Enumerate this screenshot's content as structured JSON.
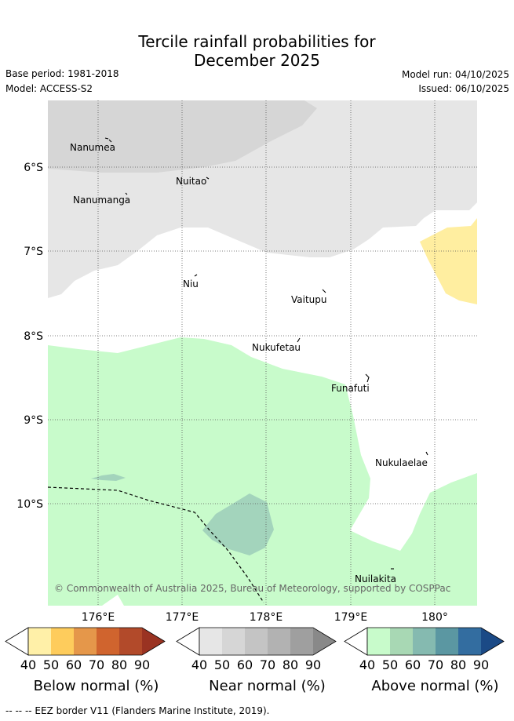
{
  "title_line1": "Tercile rainfall probabilities for",
  "title_line2": "December 2025",
  "base_period": "Base period: 1981-2018",
  "model": "Model: ACCESS-S2",
  "model_run": "Model run: 04/10/2025",
  "issued": "Issued: 06/10/2025",
  "lat_labels": [
    "6°S",
    "7°S",
    "8°S",
    "9°S",
    "10°S"
  ],
  "lon_labels": [
    "176°E",
    "177°E",
    "178°E",
    "179°E",
    "180°"
  ],
  "islands": [
    "Nanumea",
    "Nuitao",
    "Nanumanga",
    "Niu",
    "Vaitupu",
    "Nukufetau",
    "Funafuti",
    "Nukulaelae",
    "Nuilakita"
  ],
  "credit": "© Commonwealth of Australia 2025, Bureau of Meteorology, supported by COSPPac",
  "colorbars": [
    {
      "title": "Below normal (%)",
      "ticks": [
        "40",
        "50",
        "60",
        "70",
        "80",
        "90"
      ],
      "colors": [
        "#fff0a8",
        "#fecc5c",
        "#e5974a",
        "#d0642e",
        "#b24a2a",
        "#9a3322"
      ]
    },
    {
      "title": "Near normal (%)",
      "ticks": [
        "40",
        "50",
        "60",
        "70",
        "80",
        "90"
      ],
      "colors": [
        "#e6e6e6",
        "#d6d6d6",
        "#c4c4c4",
        "#b2b2b2",
        "#9f9f9f",
        "#898989"
      ]
    },
    {
      "title": "Above normal (%)",
      "ticks": [
        "40",
        "50",
        "60",
        "70",
        "80",
        "90"
      ],
      "colors": [
        "#c8fbcb",
        "#a8d8b4",
        "#85bab0",
        "#5b97a2",
        "#336da0",
        "#1b4a86"
      ]
    }
  ],
  "footer": "-- -- -- EEZ border V11 (Flanders Marine Institute, 2019)."
}
